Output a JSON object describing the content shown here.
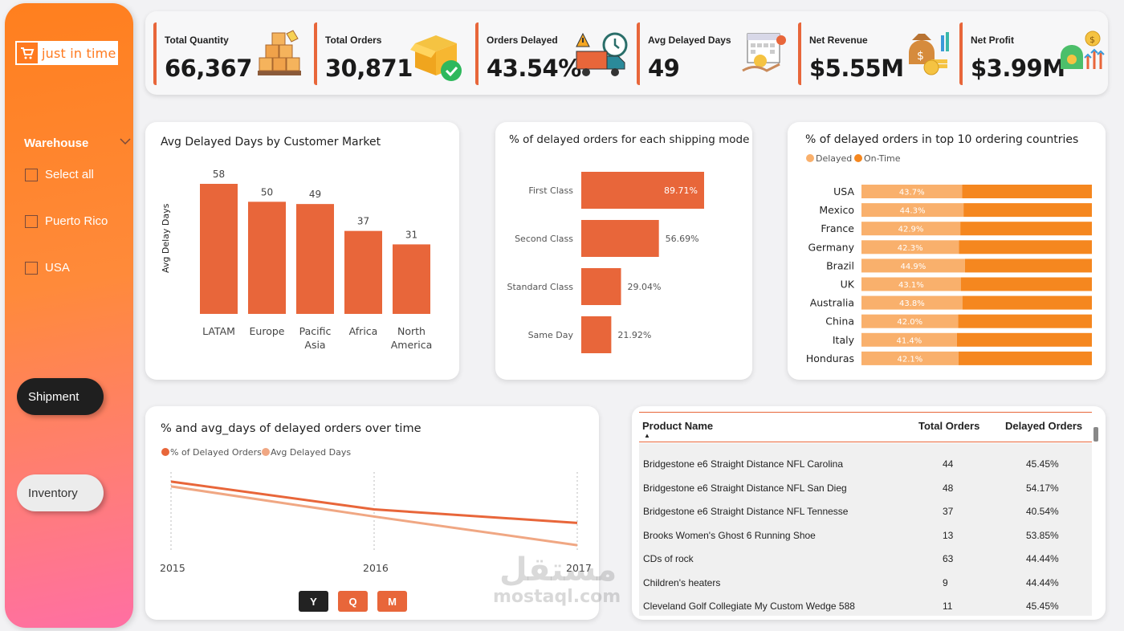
{
  "colors": {
    "accent": "#e8663a",
    "orange": "#ff7a1f",
    "delayed_light": "#f9b06c",
    "ontime": "#f5871f",
    "line2": "#f0a783"
  },
  "sidebar": {
    "logo_text": "just in time",
    "filter_title": "Warehouse",
    "options": [
      "Select all",
      "Puerto Rico",
      "USA"
    ],
    "buttons": {
      "shipment": "Shipment",
      "inventory": "Inventory"
    }
  },
  "kpis": [
    {
      "label": "Total Quantity",
      "value": "66,367",
      "icon": "stacked-boxes-icon"
    },
    {
      "label": "Total Orders",
      "value": "30,871",
      "icon": "box-check-icon"
    },
    {
      "label": "Orders Delayed",
      "value": "43.54%",
      "icon": "delivery-truck-warning-icon"
    },
    {
      "label": "Avg Delayed Days",
      "value": "49",
      "icon": "calendar-hand-icon"
    },
    {
      "label": "Net Revenue",
      "value": "$5.55M",
      "icon": "money-bag-icon"
    },
    {
      "label": "Net Profit",
      "value": "$3.99M",
      "icon": "profit-bag-icon"
    }
  ],
  "charts": {
    "market": {
      "title": "Avg Delayed Days by Customer Market",
      "ylabel": "Avg Delay Days"
    },
    "shipping": {
      "title": "% of delayed orders for each shipping mode"
    },
    "countries": {
      "title": "% of delayed orders in top 10 ordering countries",
      "legend": [
        "Delayed",
        "On-Time"
      ]
    },
    "time": {
      "title": "% and avg_days of delayed orders over time",
      "legend": [
        "% of Delayed Orders",
        "Avg Delayed Days"
      ],
      "buttons": [
        "Y",
        "Q",
        "M"
      ]
    }
  },
  "chart_data": [
    {
      "type": "bar",
      "title": "Avg Delayed Days by Customer Market",
      "ylabel": "Avg Delay Days",
      "categories": [
        "LATAM",
        "Europe",
        "Pacific Asia",
        "Africa",
        "North America"
      ],
      "values": [
        58,
        50,
        49,
        37,
        31
      ],
      "ylim": [
        0,
        60
      ]
    },
    {
      "type": "bar",
      "orientation": "horizontal",
      "title": "% of delayed orders for each shipping mode",
      "categories": [
        "First Class",
        "Second Class",
        "Standard Class",
        "Same Day"
      ],
      "values": [
        89.71,
        56.69,
        29.04,
        21.92
      ],
      "value_labels": [
        "89.71%",
        "56.69%",
        "29.04%",
        "21.92%"
      ]
    },
    {
      "type": "bar",
      "orientation": "horizontal",
      "stacked": true,
      "title": "% of delayed orders in top 10 ordering countries",
      "categories": [
        "USA",
        "Mexico",
        "France",
        "Germany",
        "Brazil",
        "UK",
        "Australia",
        "China",
        "Italy",
        "Honduras"
      ],
      "series": [
        {
          "name": "Delayed",
          "values": [
            43.7,
            44.3,
            42.9,
            42.3,
            44.9,
            43.1,
            43.8,
            42.0,
            41.4,
            42.1
          ],
          "labels": [
            "43.7%",
            "44.3%",
            "42.9%",
            "42.3%",
            "44.9%",
            "43.1%",
            "43.8%",
            "42.0%",
            "41.4%",
            "42.1%"
          ]
        },
        {
          "name": "On-Time",
          "values": [
            56.3,
            55.7,
            57.1,
            57.7,
            55.1,
            56.9,
            56.2,
            58.0,
            58.6,
            57.9
          ]
        }
      ]
    },
    {
      "type": "line",
      "title": "% and avg_days of delayed orders over time",
      "x": [
        "2015",
        "2016",
        "2017"
      ],
      "series": [
        {
          "name": "% of Delayed Orders",
          "values": [
            0.89,
            0.54,
            0.37
          ]
        },
        {
          "name": "Avg Delayed Days",
          "values": [
            0.83,
            0.45,
            0.09
          ]
        }
      ]
    }
  ],
  "table": {
    "headers": [
      "Product Name",
      "Total Orders",
      "Delayed Orders"
    ],
    "rows": [
      [
        "Bridgestone e6 Straight Distance NFL Carolina",
        "44",
        "45.45%"
      ],
      [
        "Bridgestone e6 Straight Distance NFL San Dieg",
        "48",
        "54.17%"
      ],
      [
        "Bridgestone e6 Straight Distance NFL Tennesse",
        "37",
        "40.54%"
      ],
      [
        "Brooks Women's Ghost 6 Running Shoe",
        "13",
        "53.85%"
      ],
      [
        "CDs of rock",
        "63",
        "44.44%"
      ],
      [
        "Children's heaters",
        "9",
        "44.44%"
      ],
      [
        "Cleveland Golf Collegiate My Custom Wedge 588",
        "11",
        "45.45%"
      ]
    ]
  },
  "watermark": {
    "arabic": "مستقل",
    "latin": "mostaql.com"
  }
}
